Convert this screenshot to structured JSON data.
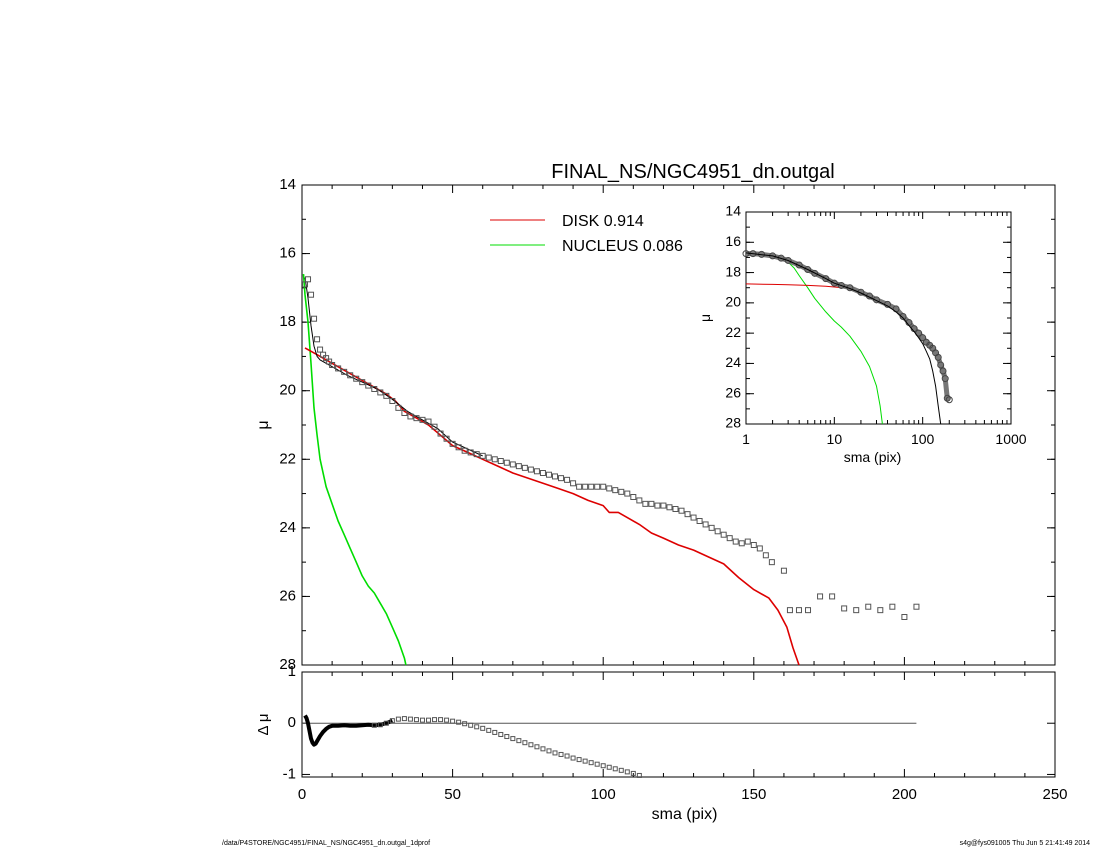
{
  "title": "FINAL_NS/NGC4951_dn.outgal",
  "footer": {
    "left": "/data/P4STORE/NGC4951/FINAL_NS/NGC4951_dn.outgal_1dprof",
    "right": "s4g@fys091005  Thu Jun  5 21:41:49 2014"
  },
  "colors": {
    "data": "#555555",
    "disk": "#dd0000",
    "nucleus": "#00dd00",
    "model": "#000000",
    "axis": "#000000"
  },
  "legend": [
    {
      "label": "DISK  0.914",
      "color": "#dd0000"
    },
    {
      "label": "NUCLEUS  0.086",
      "color": "#00dd00"
    }
  ],
  "chart_data": [
    {
      "type": "line",
      "name": "main",
      "xlabel": "",
      "ylabel": "μ",
      "xlim": [
        0,
        250
      ],
      "ylim": [
        28,
        14
      ],
      "yticks": [
        "14",
        "16",
        "18",
        "20",
        "22",
        "24",
        "26",
        "28"
      ],
      "data_points": {
        "x": [
          1,
          2,
          3,
          4,
          5,
          6,
          7,
          8,
          9,
          10,
          12,
          14,
          16,
          18,
          20,
          22,
          24,
          26,
          28,
          30,
          32,
          34,
          36,
          38,
          40,
          42,
          44,
          46,
          48,
          50,
          52,
          54,
          56,
          58,
          60,
          62,
          64,
          66,
          68,
          70,
          72,
          74,
          76,
          78,
          80,
          82,
          84,
          86,
          88,
          90,
          92,
          94,
          96,
          98,
          100,
          102,
          104,
          106,
          108,
          110,
          112,
          114,
          116,
          118,
          120,
          122,
          124,
          126,
          128,
          130,
          132,
          134,
          136,
          138,
          140,
          142,
          144,
          146,
          148,
          150,
          152,
          154,
          156,
          160,
          162,
          165,
          168,
          172,
          176,
          180,
          184,
          188,
          192,
          196,
          200,
          204
        ],
        "y": [
          16.9,
          16.75,
          17.2,
          17.9,
          18.5,
          18.8,
          18.95,
          19.05,
          19.15,
          19.25,
          19.35,
          19.45,
          19.55,
          19.65,
          19.75,
          19.85,
          19.95,
          20.05,
          20.15,
          20.3,
          20.5,
          20.65,
          20.75,
          20.8,
          20.85,
          20.9,
          21.05,
          21.25,
          21.4,
          21.55,
          21.65,
          21.75,
          21.8,
          21.85,
          21.9,
          21.95,
          22.0,
          22.05,
          22.1,
          22.15,
          22.2,
          22.25,
          22.3,
          22.35,
          22.4,
          22.45,
          22.5,
          22.55,
          22.6,
          22.7,
          22.8,
          22.8,
          22.8,
          22.8,
          22.8,
          22.85,
          22.9,
          22.95,
          23.0,
          23.1,
          23.2,
          23.3,
          23.3,
          23.35,
          23.35,
          23.4,
          23.45,
          23.5,
          23.6,
          23.7,
          23.8,
          23.9,
          24.0,
          24.1,
          24.2,
          24.3,
          24.4,
          24.45,
          24.4,
          24.5,
          24.6,
          24.8,
          25.0,
          25.25,
          26.4,
          26.4,
          26.4,
          26.0,
          26.0,
          26.35,
          26.4,
          26.3,
          26.4,
          26.3,
          26.6,
          26.3
        ]
      },
      "disk": {
        "x": [
          1,
          5,
          10,
          15,
          20,
          25,
          28,
          31,
          34,
          38,
          42,
          46,
          50,
          55,
          60,
          65,
          70,
          75,
          80,
          85,
          90,
          95,
          100,
          102,
          105,
          108,
          112,
          116,
          120,
          125,
          130,
          135,
          140,
          145,
          150,
          155,
          158,
          161,
          163,
          165
        ],
        "y": [
          18.75,
          18.95,
          19.2,
          19.45,
          19.7,
          19.95,
          20.1,
          20.3,
          20.6,
          20.8,
          21.0,
          21.3,
          21.6,
          21.8,
          22.0,
          22.2,
          22.4,
          22.55,
          22.7,
          22.85,
          23.0,
          23.2,
          23.35,
          23.55,
          23.55,
          23.7,
          23.9,
          24.15,
          24.3,
          24.5,
          24.65,
          24.85,
          25.05,
          25.45,
          25.8,
          26.05,
          26.4,
          26.9,
          27.5,
          28.0
        ]
      },
      "nucleus": {
        "x": [
          0.5,
          1,
          2,
          3,
          4,
          5,
          6,
          8,
          10,
          12,
          14,
          16,
          18,
          20,
          22,
          24,
          26,
          28,
          30,
          32,
          34,
          34.5
        ],
        "y": [
          16.6,
          17.2,
          18.0,
          19.2,
          20.5,
          21.3,
          22.0,
          22.8,
          23.3,
          23.8,
          24.2,
          24.6,
          25.0,
          25.4,
          25.7,
          25.9,
          26.2,
          26.5,
          26.9,
          27.3,
          27.8,
          28.0
        ]
      },
      "model": {
        "x": [
          1,
          2,
          3,
          4,
          5,
          6,
          8,
          10,
          15,
          20,
          25,
          30,
          35,
          40,
          45,
          50,
          55,
          60
        ],
        "y": [
          16.7,
          17.3,
          18.1,
          18.7,
          19.0,
          19.1,
          19.2,
          19.3,
          19.55,
          19.75,
          19.95,
          20.25,
          20.6,
          20.85,
          21.1,
          21.5,
          21.7,
          21.9
        ]
      }
    },
    {
      "type": "line",
      "name": "residual",
      "xlabel": "sma (pix)",
      "ylabel": "Δ μ",
      "xlim": [
        0,
        250
      ],
      "ylim": [
        -1.05,
        1
      ],
      "yticks": [
        "1",
        "0",
        "-1"
      ],
      "xticks": [
        "0",
        "50",
        "100",
        "150",
        "200",
        "250"
      ],
      "zero_line": {
        "x": [
          0,
          204
        ],
        "y": [
          0,
          0
        ]
      },
      "data_points": {
        "x": [
          1,
          1.5,
          2,
          2.5,
          3,
          3.5,
          4,
          4.5,
          5,
          6,
          7,
          8,
          9,
          10,
          12,
          14,
          16,
          18,
          20,
          22,
          24,
          26,
          28,
          30,
          32,
          34,
          36,
          38,
          40,
          42,
          44,
          46,
          48,
          50,
          52,
          54,
          56,
          58,
          60,
          62,
          64,
          66,
          68,
          70,
          72,
          74,
          76,
          78,
          80,
          82,
          84,
          86,
          88,
          90,
          92,
          94,
          96,
          98,
          100,
          102,
          104,
          106,
          108,
          110,
          112
        ],
        "y": [
          0.15,
          0.1,
          0.0,
          -0.15,
          -0.3,
          -0.38,
          -0.42,
          -0.4,
          -0.35,
          -0.25,
          -0.17,
          -0.11,
          -0.07,
          -0.05,
          -0.05,
          -0.04,
          -0.05,
          -0.05,
          -0.04,
          -0.03,
          -0.04,
          -0.03,
          0.0,
          0.05,
          0.08,
          0.09,
          0.08,
          0.07,
          0.06,
          0.06,
          0.07,
          0.07,
          0.06,
          0.04,
          0.02,
          -0.01,
          -0.04,
          -0.07,
          -0.1,
          -0.14,
          -0.18,
          -0.22,
          -0.26,
          -0.3,
          -0.34,
          -0.38,
          -0.42,
          -0.46,
          -0.5,
          -0.54,
          -0.58,
          -0.61,
          -0.64,
          -0.68,
          -0.71,
          -0.74,
          -0.77,
          -0.8,
          -0.83,
          -0.86,
          -0.89,
          -0.92,
          -0.95,
          -0.98,
          -1.02
        ]
      }
    },
    {
      "type": "line",
      "name": "inset",
      "xscale": "log",
      "xlabel": "sma (pix)",
      "ylabel": "μ",
      "xlim": [
        1,
        1000
      ],
      "ylim": [
        28,
        14
      ],
      "yticks": [
        "14",
        "16",
        "18",
        "20",
        "22",
        "24",
        "26",
        "28"
      ],
      "xticks": [
        "1",
        "10",
        "100",
        "1000"
      ],
      "data_points": {
        "x": [
          1,
          1.2,
          1.5,
          2,
          2.5,
          3,
          4,
          5,
          6,
          8,
          10,
          12,
          15,
          20,
          25,
          30,
          40,
          50,
          60,
          70,
          80,
          90,
          100,
          110,
          120,
          130,
          140,
          150,
          160,
          170,
          180,
          190,
          200
        ],
        "y": [
          16.75,
          16.75,
          16.8,
          16.9,
          17.05,
          17.2,
          17.5,
          17.8,
          18.05,
          18.4,
          18.7,
          18.85,
          19.0,
          19.3,
          19.55,
          19.8,
          20.1,
          20.4,
          20.9,
          21.3,
          21.7,
          22.0,
          22.3,
          22.6,
          22.8,
          23.0,
          23.3,
          23.6,
          24.1,
          24.5,
          25.0,
          26.3,
          26.4
        ]
      },
      "disk": {
        "x": [
          1,
          2,
          3,
          5,
          8,
          10,
          15,
          20
        ],
        "y": [
          18.75,
          18.78,
          18.8,
          18.85,
          18.9,
          18.95,
          19.05,
          19.15
        ]
      },
      "nucleus": {
        "x": [
          1,
          1.5,
          2,
          2.5,
          3,
          3.5,
          4,
          5,
          6,
          8,
          10,
          12,
          15,
          20,
          25,
          30,
          33,
          35
        ],
        "y": [
          16.7,
          16.8,
          16.9,
          17.05,
          17.3,
          17.7,
          18.2,
          19.0,
          19.7,
          20.6,
          21.2,
          21.6,
          22.2,
          23.2,
          24.2,
          25.5,
          26.8,
          28.0
        ]
      },
      "model": {
        "x": [
          1,
          2,
          3,
          5,
          8,
          10,
          15,
          20,
          30,
          40,
          50,
          60,
          70,
          80,
          90,
          100,
          110,
          120,
          130,
          140,
          150,
          160
        ],
        "y": [
          16.7,
          16.9,
          17.2,
          17.8,
          18.4,
          18.7,
          19.05,
          19.35,
          19.85,
          20.2,
          20.6,
          21.0,
          21.5,
          21.9,
          22.3,
          22.7,
          23.2,
          23.7,
          24.5,
          25.5,
          26.8,
          28.0
        ]
      }
    }
  ]
}
